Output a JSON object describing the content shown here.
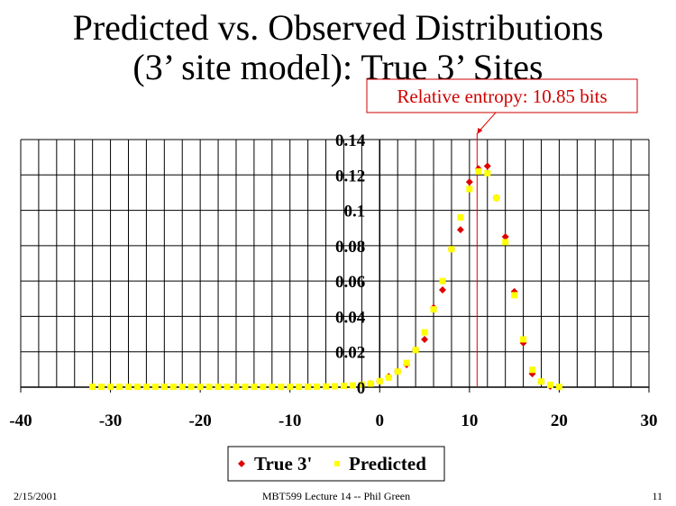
{
  "chart_data": {
    "type": "scatter",
    "title_lines": [
      "Predicted vs. Observed Distributions",
      "(3’ site model): True 3’ Sites"
    ],
    "xlabel": "",
    "ylabel": "",
    "xlim": [
      -40,
      30
    ],
    "ylim": [
      0,
      0.14
    ],
    "x_ticks": [
      "-40",
      "-30",
      "-20",
      "-10",
      "0",
      "10",
      "20",
      "30"
    ],
    "x_tick_values": [
      -40,
      -30,
      -20,
      -10,
      0,
      10,
      20,
      30
    ],
    "y_ticks": [
      "0",
      "0.02",
      "0.04",
      "0.06",
      "0.08",
      "0.1",
      "0.12",
      "0.14"
    ],
    "y_tick_values": [
      0,
      0.02,
      0.04,
      0.06,
      0.08,
      0.1,
      0.12,
      0.14
    ],
    "x_grid_step": 2,
    "grid": true,
    "legend_position": "bottom",
    "series": [
      {
        "name": "True 3'",
        "color": "#e00000",
        "marker": "diamond",
        "x": [
          -1,
          0,
          1,
          2,
          3,
          4,
          5,
          6,
          7,
          8,
          9,
          10,
          11,
          12,
          13,
          14,
          15,
          16,
          17,
          18,
          19
        ],
        "y": [
          0.002,
          0.0034,
          0.006,
          0.009,
          0.0127,
          0.021,
          0.027,
          0.045,
          0.055,
          0.078,
          0.089,
          0.116,
          0.1235,
          0.125,
          0.107,
          0.085,
          0.054,
          0.025,
          0.0076,
          0.003,
          0.0005
        ]
      },
      {
        "name": "Predicted",
        "color": "#ffff00",
        "marker": "square",
        "x": [
          -32,
          -31,
          -30,
          -29,
          -28,
          -27,
          -26,
          -25,
          -24,
          -23,
          -22,
          -21,
          -20,
          -19,
          -18,
          -17,
          -16,
          -15,
          -14,
          -13,
          -12,
          -11,
          -10,
          -9,
          -8,
          -7,
          -6,
          -5,
          -4,
          -3,
          -2,
          -1,
          0,
          1,
          2,
          3,
          4,
          5,
          6,
          7,
          8,
          9,
          10,
          11,
          12,
          13,
          14,
          15,
          16,
          17,
          18,
          19,
          20
        ],
        "y": [
          0.0002,
          0.0002,
          0.0002,
          0.0002,
          0.0002,
          0.0002,
          0.0002,
          0.0002,
          0.0002,
          0.0002,
          0.0002,
          0.0002,
          0.0002,
          0.0002,
          0.0002,
          0.0002,
          0.0002,
          0.0002,
          0.0002,
          0.0002,
          0.0002,
          0.0002,
          0.0002,
          0.0002,
          0.0002,
          0.0003,
          0.0004,
          0.0005,
          0.0007,
          0.001,
          0.0014,
          0.002,
          0.0034,
          0.0054,
          0.0088,
          0.0137,
          0.021,
          0.031,
          0.044,
          0.06,
          0.078,
          0.096,
          0.112,
          0.122,
          0.121,
          0.107,
          0.082,
          0.052,
          0.027,
          0.0098,
          0.0032,
          0.0013,
          0.0002
        ]
      }
    ],
    "annotation": {
      "text": "Relative entropy: 10.85 bits",
      "x": 10.85,
      "color": "#e00000"
    }
  },
  "footer": {
    "date": "2/15/2001",
    "center": "MBT599 Lecture 14 -- Phil Green",
    "page": "11"
  }
}
